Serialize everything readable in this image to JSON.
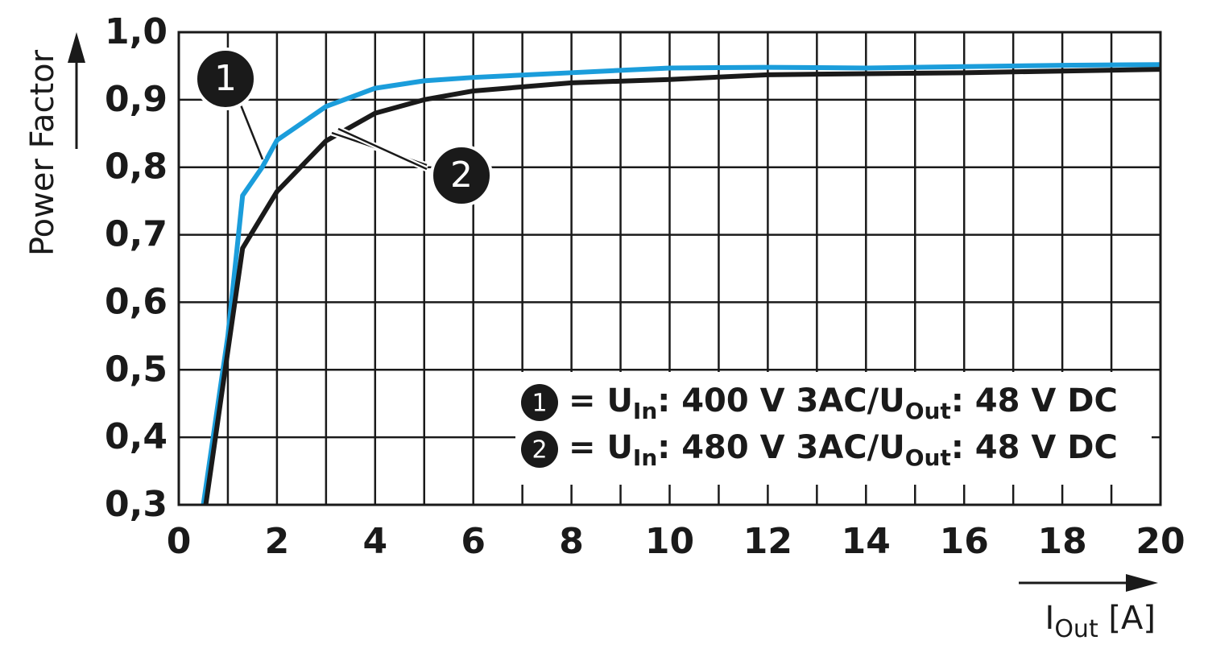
{
  "chart_data": {
    "type": "line",
    "ylabel": "Power Factor",
    "xlabel": [
      "I",
      "Out",
      " [A]"
    ],
    "xlim": [
      0,
      20
    ],
    "ylim": [
      0.3,
      1.0
    ],
    "xticks": [
      0,
      2,
      4,
      6,
      8,
      10,
      12,
      14,
      16,
      18,
      20
    ],
    "xgrid": [
      1,
      3,
      5,
      7,
      9,
      11,
      13,
      15,
      17,
      19
    ],
    "yticks": [
      {
        "value": 0.3,
        "label": "0,3"
      },
      {
        "value": 0.4,
        "label": "0,4"
      },
      {
        "value": 0.5,
        "label": "0,5"
      },
      {
        "value": 0.6,
        "label": "0,6"
      },
      {
        "value": 0.7,
        "label": "0,7"
      },
      {
        "value": 0.8,
        "label": "0,8"
      },
      {
        "value": 0.9,
        "label": "0,9"
      },
      {
        "value": 1.0,
        "label": "1,0"
      }
    ],
    "grid": true,
    "series": [
      {
        "id": "1",
        "name": [
          "= U",
          "In",
          ": 400 V 3AC/U",
          "Out",
          ": 48 V DC"
        ],
        "color": "#1b9ddb",
        "x": [
          0.5,
          1.0,
          1.3,
          1.7,
          2,
          3,
          4,
          5,
          6,
          8,
          10,
          12,
          14,
          16,
          18,
          20
        ],
        "values": [
          0.3,
          0.55,
          0.758,
          0.8,
          0.84,
          0.89,
          0.917,
          0.928,
          0.933,
          0.94,
          0.947,
          0.948,
          0.947,
          0.949,
          0.951,
          0.952
        ]
      },
      {
        "id": "2",
        "name": [
          "= U",
          "In",
          ": 480 V 3AC/U",
          "Out",
          ": 48 V DC"
        ],
        "color": "#1a1a1a",
        "x": [
          0.55,
          1.3,
          2,
          3,
          4,
          5,
          6,
          8,
          10,
          12,
          16,
          20
        ],
        "values": [
          0.3,
          0.68,
          0.764,
          0.839,
          0.88,
          0.9,
          0.913,
          0.925,
          0.93,
          0.937,
          0.94,
          0.945
        ]
      }
    ]
  }
}
